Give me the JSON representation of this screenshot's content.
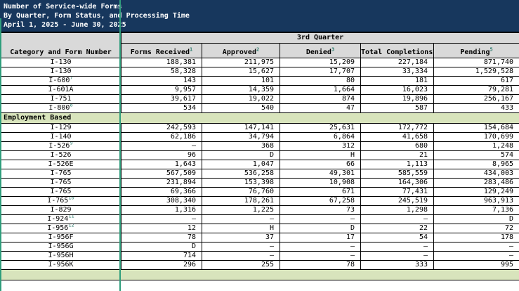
{
  "title": {
    "line1": "Number of Service-wide Forms",
    "line2": "By Quarter, Form Status, and Processing Time",
    "line3": "April 1, 2025 - June 30, 2025"
  },
  "table": {
    "quarter_header": "3rd Quarter",
    "columns": [
      {
        "label": "Category and Form Number",
        "sup": ""
      },
      {
        "label": "Forms Received",
        "sup": "1"
      },
      {
        "label": "Approved",
        "sup": "2"
      },
      {
        "label": "Denied",
        "sup": "3"
      },
      {
        "label": "Total Completions",
        "sup": "4"
      },
      {
        "label": "Pending",
        "sup": "5"
      }
    ],
    "rows": [
      {
        "form": "I-130",
        "sup": "",
        "values": [
          "188,381",
          "211,975",
          "15,209",
          "227,184",
          "871,740"
        ]
      },
      {
        "form": "I-130",
        "sup": "",
        "values": [
          "58,328",
          "15,627",
          "17,707",
          "33,334",
          "1,529,528"
        ]
      },
      {
        "form": "I-600",
        "sup": "7",
        "values": [
          "143",
          "101",
          "80",
          "181",
          "617"
        ]
      },
      {
        "form": "I-601A",
        "sup": "",
        "values": [
          "9,957",
          "14,359",
          "1,664",
          "16,023",
          "79,281"
        ]
      },
      {
        "form": "I-751",
        "sup": "",
        "values": [
          "39,617",
          "19,022",
          "874",
          "19,896",
          "256,167"
        ]
      },
      {
        "form": "I-800",
        "sup": "8",
        "values": [
          "534",
          "540",
          "47",
          "587",
          "433"
        ]
      },
      {
        "section": "Employment Based"
      },
      {
        "form": "I-129",
        "sup": "",
        "values": [
          "242,593",
          "147,141",
          "25,631",
          "172,772",
          "154,684"
        ]
      },
      {
        "form": "I-140",
        "sup": "",
        "values": [
          "62,186",
          "34,794",
          "6,864",
          "41,658",
          "170,699"
        ]
      },
      {
        "form": "I-526",
        "sup": "9",
        "values": [
          "–",
          "368",
          "312",
          "680",
          "1,248"
        ]
      },
      {
        "form": "I-526",
        "sup": "",
        "values": [
          "96",
          "D",
          "H",
          "21",
          "574"
        ]
      },
      {
        "form": "I-526E",
        "sup": "",
        "values": [
          "1,643",
          "1,047",
          "66",
          "1,113",
          "8,965"
        ]
      },
      {
        "form": "I-765",
        "sup": "",
        "values": [
          "567,509",
          "536,258",
          "49,301",
          "585,559",
          "434,003"
        ]
      },
      {
        "form": "I-765",
        "sup": "",
        "values": [
          "231,894",
          "153,398",
          "10,908",
          "164,306",
          "283,486"
        ]
      },
      {
        "form": "I-765",
        "sup": "",
        "values": [
          "69,366",
          "76,760",
          "671",
          "77,431",
          "129,249"
        ]
      },
      {
        "form": "I-765",
        "sup": "10",
        "values": [
          "308,340",
          "178,261",
          "67,258",
          "245,519",
          "963,913"
        ]
      },
      {
        "form": "I-829",
        "sup": "",
        "values": [
          "1,316",
          "1,225",
          "73",
          "1,298",
          "7,136"
        ]
      },
      {
        "form": "I-924",
        "sup": "11",
        "values": [
          "–",
          "–",
          "–",
          "–",
          "D"
        ]
      },
      {
        "form": "I-956",
        "sup": "12",
        "values": [
          "12",
          "H",
          "D",
          "22",
          "72"
        ]
      },
      {
        "form": "I-956F",
        "sup": "",
        "values": [
          "78",
          "37",
          "17",
          "54",
          "178"
        ]
      },
      {
        "form": "I-956G",
        "sup": "",
        "values": [
          "D",
          "–",
          "–",
          "–",
          "–"
        ]
      },
      {
        "form": "I-956H",
        "sup": "",
        "values": [
          "714",
          "–",
          "–",
          "–",
          "–"
        ]
      },
      {
        "form": "I-956K",
        "sup": "",
        "values": [
          "296",
          "255",
          "78",
          "333",
          "995"
        ]
      },
      {
        "section": ""
      }
    ]
  },
  "colors": {
    "title_bg": "#17375D",
    "column_header_bg": "#D9D9D9",
    "section_bg": "#D8E4BC",
    "selection_green": "#2F9E7C",
    "footnote_color": "#2E7D6E"
  }
}
